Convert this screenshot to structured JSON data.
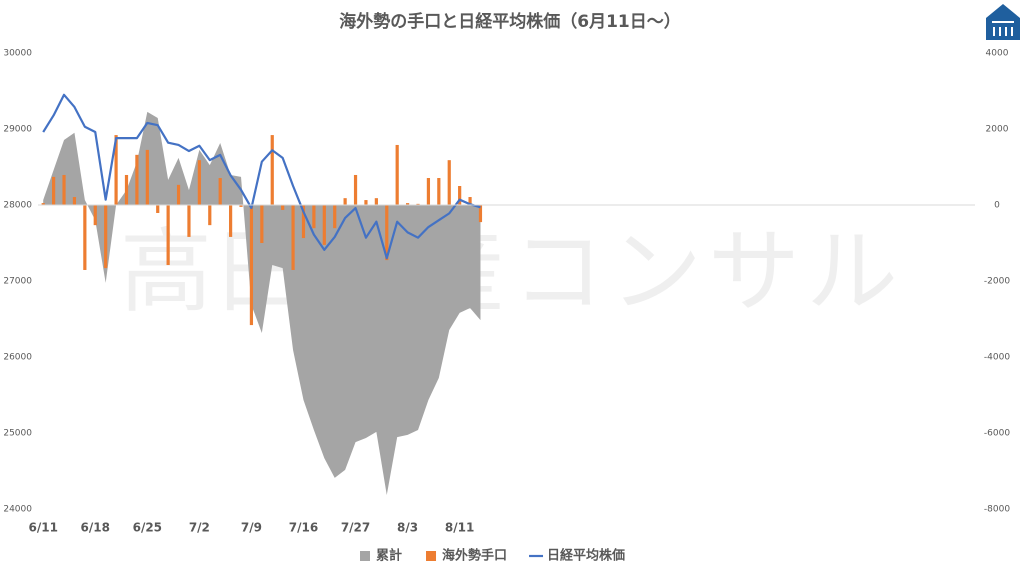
{
  "chart_data": {
    "type": "combo",
    "title": "海外勢の手口と日経平均株価（6月11日〜）",
    "watermark": "高田資産コンサル",
    "categories": [
      "6/11",
      null,
      null,
      null,
      null,
      "6/18",
      null,
      null,
      null,
      null,
      "6/25",
      null,
      null,
      null,
      null,
      "7/2",
      null,
      null,
      null,
      null,
      "7/9",
      null,
      null,
      null,
      null,
      "7/16",
      null,
      null,
      null,
      null,
      "7/27",
      null,
      null,
      null,
      null,
      "8/3",
      null,
      null,
      null,
      null,
      "8/11",
      null,
      null,
      null,
      null,
      null,
      null,
      null,
      null,
      null,
      null,
      null,
      null,
      null,
      null,
      null,
      null,
      null,
      null,
      null,
      null,
      null,
      null,
      null,
      null,
      null,
      null,
      null,
      null,
      null,
      null,
      null,
      null,
      null,
      null,
      null,
      null,
      null,
      null,
      null,
      null,
      null,
      null,
      null,
      null,
      null,
      null,
      null,
      null,
      null
    ],
    "series": [
      {
        "name": "累計",
        "kind": "area",
        "axis": "y2",
        "color": "#a5a5a5",
        "values": [
          130,
          920,
          1710,
          1900,
          130,
          -400,
          -2050,
          0,
          390,
          1130,
          2450,
          2290,
          660,
          1240,
          390,
          1450,
          1050,
          1630,
          790,
          740,
          -2630,
          -3370,
          -1580,
          -1660,
          -3820,
          -5130,
          -5920,
          -6660,
          -7180,
          -6970,
          -6240,
          -6130,
          -5970,
          -7630,
          -6110,
          -6050,
          -5920,
          -5130,
          -4550,
          -3290,
          -2840,
          -2710,
          -3030,
          null,
          null,
          null,
          null,
          null,
          null,
          null,
          null,
          null,
          null,
          null,
          null,
          null,
          null,
          null,
          null,
          null,
          null,
          null,
          null,
          null,
          null,
          null,
          null,
          null,
          null,
          null,
          null,
          null,
          null,
          null,
          null,
          null,
          null,
          null,
          null,
          null,
          null,
          null,
          null,
          null,
          null,
          null,
          null,
          null,
          null,
          null
        ]
      },
      {
        "name": "海外勢手口",
        "kind": "bar",
        "axis": "y2",
        "color": "#ed7d31",
        "values": [
          50,
          740,
          790,
          210,
          -1710,
          -530,
          -1660,
          1840,
          790,
          1320,
          1450,
          -210,
          -1580,
          530,
          -840,
          1180,
          -530,
          710,
          -840,
          -50,
          -3160,
          -1000,
          1840,
          -130,
          -1710,
          -870,
          -610,
          -1050,
          -610,
          180,
          790,
          130,
          180,
          -1450,
          1580,
          50,
          30,
          710,
          710,
          1180,
          500,
          210,
          -450,
          null,
          null,
          null,
          null,
          null,
          null,
          null,
          null,
          null,
          null,
          null,
          null,
          null,
          null,
          null,
          null,
          null,
          null,
          null,
          null,
          null,
          null,
          null,
          null,
          null,
          null,
          null,
          null,
          null,
          null,
          null,
          null,
          null,
          null,
          null,
          null,
          null,
          null,
          null,
          null,
          null,
          null,
          null,
          null,
          null,
          null,
          null
        ]
      },
      {
        "name": "日経平均株価",
        "kind": "line",
        "axis": "y",
        "color": "#4472c4",
        "values": [
          28960,
          29180,
          29450,
          29290,
          29030,
          28960,
          28070,
          28880,
          28880,
          28880,
          29080,
          29050,
          28820,
          28790,
          28710,
          28780,
          28590,
          28660,
          28390,
          28200,
          27960,
          28570,
          28720,
          28620,
          28250,
          27910,
          27610,
          27410,
          27580,
          27830,
          27960,
          27570,
          27780,
          27300,
          27780,
          27640,
          27570,
          27710,
          27800,
          27890,
          28070,
          28010,
          27970,
          null,
          null,
          null,
          null,
          null,
          null,
          null,
          null,
          null,
          null,
          null,
          null,
          null,
          null,
          null,
          null,
          null,
          null,
          null,
          null,
          null,
          null,
          null,
          null,
          null,
          null,
          null,
          null,
          null,
          null,
          null,
          null,
          null,
          null,
          null,
          null,
          null,
          null,
          null,
          null,
          null,
          null,
          null,
          null,
          null,
          null,
          null
        ]
      }
    ],
    "ylim": [
      24000,
      30000
    ],
    "yticks": [
      24000,
      25000,
      26000,
      27000,
      28000,
      29000,
      30000
    ],
    "y2lim": [
      -8000,
      4000
    ],
    "y2ticks": [
      -8000,
      -6000,
      -4000,
      -2000,
      0,
      2000,
      4000
    ],
    "legend": "bottom"
  }
}
